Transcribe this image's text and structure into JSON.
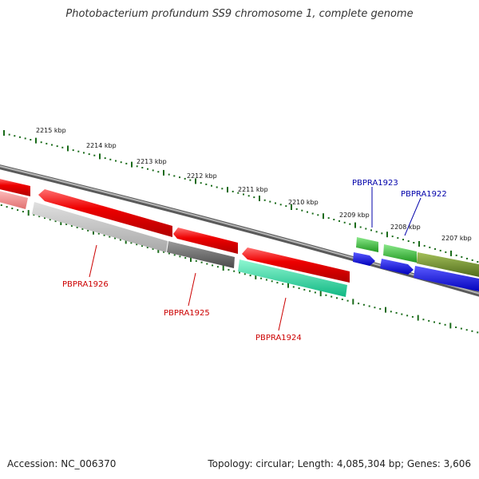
{
  "title": "Photobacterium profundum SS9 chromosome 1, complete genome",
  "footer": {
    "accession": "Accession: NC_006370",
    "summary": "Topology: circular; Length: 4,085,304 bp; Genes: 3,606"
  },
  "ruler": {
    "kbp_labels": [
      "2215 kbp",
      "2214 kbp",
      "2213 kbp",
      "2212 kbp",
      "2211 kbp",
      "2210 kbp",
      "2209 kbp",
      "2208 kbp",
      "2207 kbp"
    ]
  },
  "colors": {
    "backbone": "#777777",
    "tick": "#1a6b1a",
    "forward_gene": "#e60000",
    "reverse_gene_grey": "#bbbbbb",
    "reverse_gene_dark": "#666666",
    "reverse_gene_teal": "#1fd39a",
    "green_gene": "#33bb33",
    "olive_gene": "#6b8e23",
    "blue_gene": "#0000dd",
    "label_red": "#cc0000",
    "label_blue": "#0000aa"
  },
  "gene_labels": [
    {
      "name": "PBPRA1926",
      "color": "#cc0000"
    },
    {
      "name": "PBPRA1925",
      "color": "#cc0000"
    },
    {
      "name": "PBPRA1924",
      "color": "#cc0000"
    },
    {
      "name": "PBPRA1923",
      "color": "#0000aa"
    },
    {
      "name": "PBPRA1922",
      "color": "#0000aa"
    }
  ]
}
